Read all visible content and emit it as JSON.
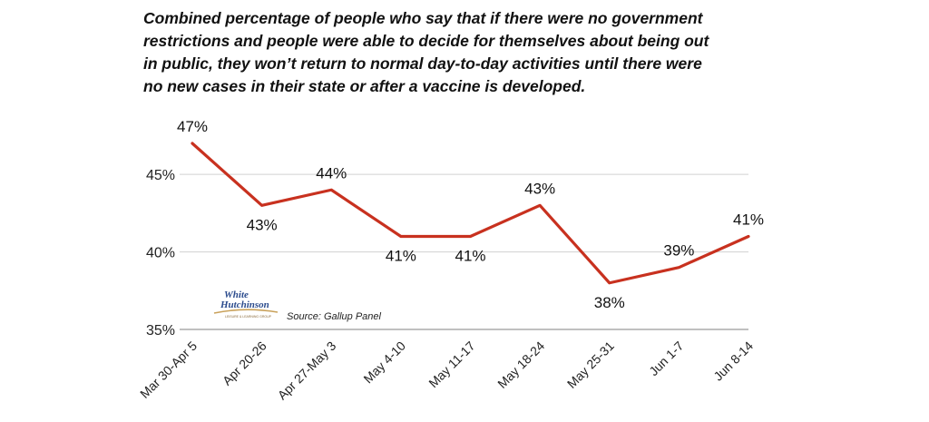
{
  "chart_data": {
    "type": "line",
    "title_lines": [
      "Combined percentage of people who say that if there were no government",
      "restrictions and people were able to decide for themselves about being out",
      "in public, they won’t return to normal day-to-day activities until there were",
      "no new cases in their state or after a vaccine is developed."
    ],
    "categories": [
      "Mar 30-Apr 5",
      "Apr 20-26",
      "Apr 27-May 3",
      "May 4-10",
      "May 11-17",
      "May 18-24",
      "May 25-31",
      "Jun 1-7",
      "Jun 8-14"
    ],
    "values": [
      47,
      43,
      44,
      41,
      41,
      43,
      38,
      39,
      41
    ],
    "data_labels": [
      "47%",
      "43%",
      "44%",
      "41%",
      "41%",
      "43%",
      "38%",
      "39%",
      "41%"
    ],
    "ylim": [
      35,
      47
    ],
    "yticks": [
      35,
      40,
      45
    ],
    "ytick_labels": [
      "35%",
      "40%",
      "45%"
    ],
    "grid": true,
    "line_color": "#c8311f",
    "source": "Source: Gallup Panel",
    "logo": {
      "line1": "White",
      "line2": "Hutchinson",
      "small": "LEISURE & LEARNING GROUP"
    }
  }
}
